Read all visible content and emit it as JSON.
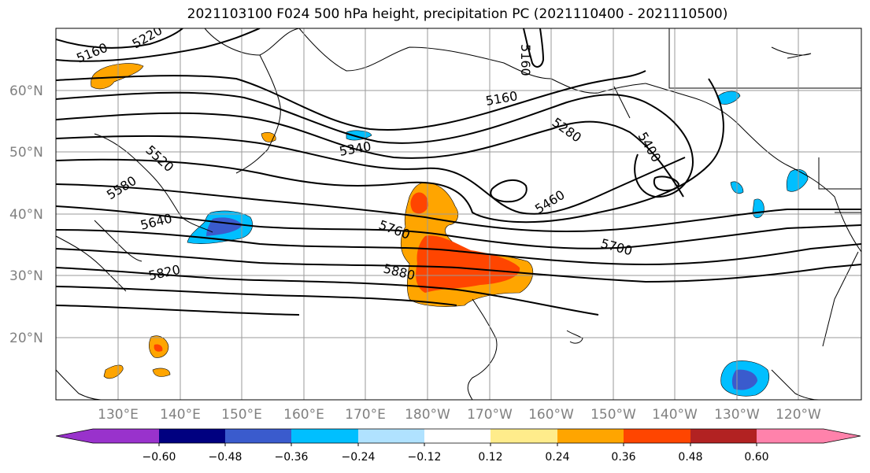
{
  "title": "2021103100 F024 500 hPa height, precipitation PC (2021110400 - 2021110500)",
  "map": {
    "lat_labels": [
      "60°N",
      "50°N",
      "40°N",
      "30°N",
      "20°N"
    ],
    "lon_labels": [
      "130°E",
      "140°E",
      "150°E",
      "160°E",
      "170°E",
      "180°W",
      "170°W",
      "160°W",
      "150°W",
      "140°W",
      "130°W",
      "120°W"
    ],
    "height_contour_labels": [
      "5160",
      "5220",
      "5160",
      "5160",
      "5340",
      "5280",
      "5400",
      "5520",
      "5580",
      "5460",
      "5640",
      "5760",
      "5700",
      "5820",
      "5880"
    ],
    "colors": {
      "coast": "#000000",
      "grid": "#9a9a9a",
      "contour": "#000000"
    }
  },
  "colorbar": {
    "tick_labels": [
      "−0.60",
      "−0.48",
      "−0.36",
      "−0.24",
      "−0.12",
      "0.12",
      "0.24",
      "0.36",
      "0.48",
      "0.60"
    ],
    "colors": [
      "#9932cc",
      "#000080",
      "#3a5bcd",
      "#00bfff",
      "#b0e2ff",
      "#ffffff",
      "#ffec8b",
      "#ffa500",
      "#ff4500",
      "#b22222",
      "#ff82ab"
    ]
  }
}
